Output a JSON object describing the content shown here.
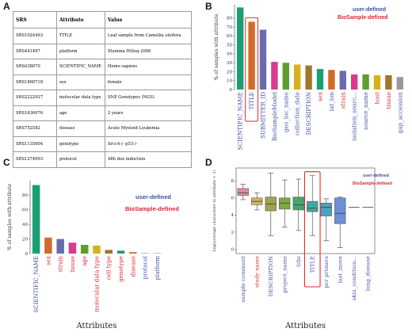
{
  "colors": {
    "user_defined": "#3e4fa8",
    "biosample_defined": "#d8282f",
    "highlight_box": "#e32b2b"
  },
  "panel_a": {
    "letter": "A",
    "headers": [
      "SRS",
      "Attribute",
      "Value"
    ],
    "rows": [
      [
        "SRS1024493",
        "TITLE",
        "Leaf sample from Camellia oleifera"
      ],
      [
        "SRS441497",
        "platform",
        "Illumina HiSeq 2000"
      ],
      [
        "SRS438070",
        "SCIENTIFIC_NAME",
        "Homo sapiens"
      ],
      [
        "SRS1860718",
        "sex",
        "female"
      ],
      [
        "SRS2222927",
        "molecular data type",
        "SNP Genotypes (NGS)"
      ],
      [
        "SRS1630076",
        "age",
        "2 years"
      ],
      [
        "SRS752582",
        "disease",
        "Acute Myeloid Leukemia"
      ],
      [
        "SRS1135004",
        "genotype",
        "Xrcc4-/- p53-/-"
      ],
      [
        "SRS1274093",
        "protocol",
        "48h dox induction"
      ]
    ]
  },
  "panels": {
    "b": {
      "letter": "B",
      "legend": {
        "user": "user-defined",
        "biosample": "BioSample-defined"
      }
    },
    "c": {
      "letter": "C",
      "legend": {
        "user": "user-defined",
        "biosample": "BioSample-defined"
      }
    },
    "d": {
      "letter": "D",
      "legend": {
        "user": "user-defined",
        "biosample": "BioSample-defined"
      }
    }
  },
  "chart_data": [
    {
      "panel": "B",
      "type": "bar",
      "ylabel": "% of samples with attribute",
      "ylim": [
        0,
        95
      ],
      "yticks": [
        0,
        10,
        20,
        30,
        40,
        50,
        60,
        70,
        80
      ],
      "categories": [
        "SCIENTIFIC_NAME",
        "TITLE",
        "SUBMITTER_ID",
        "BioSampleModel",
        "geo_loc_name",
        "collection_date",
        "DESCRIPTION",
        "sex",
        "lat_lon",
        "strain",
        "isolation_sourc...",
        "source_name",
        "host",
        "tissue",
        "gap_accession"
      ],
      "values": [
        92,
        76,
        67,
        31,
        30,
        28,
        27,
        23,
        22,
        21,
        17,
        17,
        16,
        16,
        14
      ],
      "bar_colors": [
        "#1a9e76",
        "#d26a2a",
        "#6b6bb0",
        "#d93a8c",
        "#5e9e2d",
        "#d9b01b",
        "#a0762c",
        "#1a9e76",
        "#d26a2a",
        "#6b6bb0",
        "#d93a8c",
        "#5e9e2d",
        "#d9b01b",
        "#a0762c",
        "#999999"
      ],
      "label_class": [
        "user",
        "user",
        "user",
        "user",
        "user",
        "user",
        "user",
        "biosample",
        "user",
        "biosample",
        "user",
        "user",
        "biosample",
        "biosample",
        "user"
      ],
      "highlight_index": 1,
      "grid": false,
      "legend_position": "top-right"
    },
    {
      "panel": "C",
      "type": "bar",
      "xlabel": "Attributes",
      "ylabel": "% of samples with attribute",
      "ylim": [
        0,
        100
      ],
      "yticks": [
        0,
        20,
        40,
        60,
        80
      ],
      "categories": [
        "SCIENTIFIC_NAME",
        "sex",
        "strain",
        "tissue",
        "age",
        "molecular data type",
        "cell type",
        "genotype",
        "disease",
        "protocol",
        "platform"
      ],
      "values": [
        94,
        22,
        20,
        15,
        12,
        11,
        5,
        4,
        2,
        0.5,
        0.5
      ],
      "bar_colors": [
        "#1a9e76",
        "#d26a2a",
        "#6b6bb0",
        "#d93a8c",
        "#5e9e2d",
        "#d9b01b",
        "#a0762c",
        "#1a9e76",
        "#d26a2a",
        "#6b6bb0",
        "#d93a8c"
      ],
      "label_class": [
        "user",
        "biosample",
        "biosample",
        "biosample",
        "biosample",
        "biosample",
        "biosample",
        "biosample",
        "biosample",
        "user",
        "user"
      ],
      "grid": false,
      "legend_position": "top-right"
    },
    {
      "panel": "D",
      "type": "box",
      "xlabel": "Attributes",
      "ylabel": "Log(average characters in attribute + 1)",
      "ylim": [
        -0.5,
        9.5
      ],
      "yticks": [
        0,
        2,
        4,
        6,
        8
      ],
      "categories": [
        "sample comment",
        "study name",
        "DESCRIPTION",
        "project_name",
        "title",
        "TITLE",
        "pcr primers",
        "last_move",
        "skin_condition...",
        "lung_disease"
      ],
      "boxes": [
        {
          "min": 5.8,
          "q1": 6.3,
          "median": 6.6,
          "q3": 7.1,
          "max": 7.6
        },
        {
          "min": 4.6,
          "q1": 5.2,
          "median": 5.6,
          "q3": 6.0,
          "max": 6.6
        },
        {
          "min": 1.6,
          "q1": 4.5,
          "median": 5.3,
          "q3": 6.1,
          "max": 8.9
        },
        {
          "min": 2.6,
          "q1": 4.7,
          "median": 5.4,
          "q3": 6.0,
          "max": 8.1
        },
        {
          "min": 2.2,
          "q1": 4.6,
          "median": 5.2,
          "q3": 6.1,
          "max": 8.2
        },
        {
          "min": 1.6,
          "q1": 4.4,
          "median": 4.8,
          "q3": 5.6,
          "max": 8.6
        },
        {
          "min": 1.0,
          "q1": 3.9,
          "median": 4.9,
          "q3": 5.4,
          "max": 5.9
        },
        {
          "min": 0.2,
          "q1": 3.0,
          "median": 4.2,
          "q3": 6.0,
          "max": 6.1
        },
        {
          "min": 4.9,
          "q1": 4.9,
          "median": 4.9,
          "q3": 4.9,
          "max": 4.9
        },
        {
          "min": 4.9,
          "q1": 4.9,
          "median": 4.9,
          "q3": 4.9,
          "max": 4.9
        }
      ],
      "box_colors": [
        "#e58b9a",
        "#d9b55a",
        "#a3a14f",
        "#7aaa46",
        "#45a66a",
        "#3fa8a0",
        "#45a4c2",
        "#6e8ed6",
        "#aa82d8",
        "#d47ec6"
      ],
      "label_class": [
        "user",
        "biosample",
        "user",
        "user",
        "user",
        "user",
        "user",
        "user",
        "user",
        "user"
      ],
      "highlight_index": 5,
      "grid": false,
      "legend_position": "top-right"
    }
  ]
}
